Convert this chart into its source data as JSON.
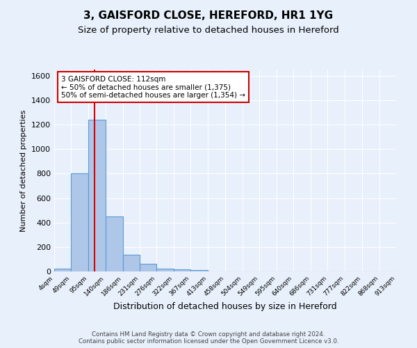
{
  "title": "3, GAISFORD CLOSE, HEREFORD, HR1 1YG",
  "subtitle": "Size of property relative to detached houses in Hereford",
  "xlabel": "Distribution of detached houses by size in Hereford",
  "ylabel": "Number of detached properties",
  "footer_line1": "Contains HM Land Registry data © Crown copyright and database right 2024.",
  "footer_line2": "Contains public sector information licensed under the Open Government Licence v3.0.",
  "bin_labels": [
    "4sqm",
    "49sqm",
    "95sqm",
    "140sqm",
    "186sqm",
    "231sqm",
    "276sqm",
    "322sqm",
    "367sqm",
    "413sqm",
    "458sqm",
    "504sqm",
    "549sqm",
    "595sqm",
    "640sqm",
    "686sqm",
    "731sqm",
    "777sqm",
    "822sqm",
    "868sqm",
    "913sqm"
  ],
  "bar_heights": [
    25,
    800,
    1240,
    450,
    135,
    60,
    25,
    15,
    12,
    0,
    0,
    0,
    0,
    0,
    0,
    0,
    0,
    0,
    0,
    0
  ],
  "bin_edges": [
    4,
    49,
    95,
    140,
    186,
    231,
    276,
    322,
    367,
    413,
    458,
    504,
    549,
    595,
    640,
    686,
    731,
    777,
    822,
    868,
    913
  ],
  "bar_color": "#aec6e8",
  "bar_edge_color": "#5b9bd5",
  "property_size": 112,
  "red_line_color": "#dd0000",
  "annotation_line1": "3 GAISFORD CLOSE: 112sqm",
  "annotation_line2": "← 50% of detached houses are smaller (1,375)",
  "annotation_line3": "50% of semi-detached houses are larger (1,354) →",
  "annotation_box_color": "#ffffff",
  "annotation_box_edge_color": "#cc0000",
  "ylim": [
    0,
    1650
  ],
  "yticks": [
    0,
    200,
    400,
    600,
    800,
    1000,
    1200,
    1400,
    1600
  ],
  "bg_color": "#e8f0fb",
  "plot_bg_color": "#e8f0fb",
  "grid_color": "#ffffff",
  "title_fontsize": 11,
  "subtitle_fontsize": 9.5
}
